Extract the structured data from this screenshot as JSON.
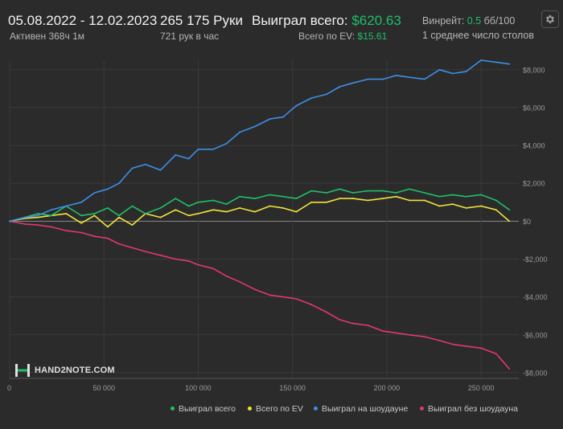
{
  "header": {
    "date_range": "05.08.2022 - 12.02.2023",
    "active": "Активен 368ч 1м",
    "hands": "265 175 Руки",
    "hands_per_hour": "721 рук в час",
    "won_label": "Выиграл всего: ",
    "won_value": "$620.63",
    "ev_label": "Всего по EV: ",
    "ev_value": "$15.61",
    "winrate_label": "Винрейт: ",
    "winrate_value": "0.5",
    "winrate_unit": " бб/100",
    "tables": "1 среднее число столов"
  },
  "settings_icon": "gear-icon",
  "logo": {
    "text": "HAND2NOTE.COM",
    "icon": "h2n-logo-icon"
  },
  "colors": {
    "background": "#2b2b2b",
    "won": "#1fbf6a",
    "ev": "#f0e43a",
    "showdown": "#3d8fe8",
    "non_showdown": "#e0396b"
  },
  "chart_data": {
    "type": "line",
    "x_ticks": [
      0,
      50000,
      100000,
      150000,
      200000,
      250000
    ],
    "x_tick_labels": [
      "0",
      "50 000",
      "100 000",
      "150 000",
      "200 000",
      "250 000"
    ],
    "y_ticks": [
      -8000,
      -6000,
      -4000,
      -2000,
      0,
      2000,
      4000,
      6000,
      8000
    ],
    "y_tick_labels": [
      "-$8,000",
      "-$6,000",
      "-$4,000",
      "-$2,000",
      "$0",
      "$2,000",
      "$4,000",
      "$6,000",
      "$8,000"
    ],
    "xlim": [
      0,
      270000
    ],
    "ylim": [
      -8300,
      8500
    ],
    "grid": true,
    "legend_position": "bottom-right",
    "x": [
      0,
      8000,
      15000,
      22000,
      30000,
      38000,
      45000,
      52000,
      58000,
      65000,
      72000,
      80000,
      88000,
      95000,
      100000,
      108000,
      115000,
      122000,
      130000,
      138000,
      145000,
      152000,
      160000,
      168000,
      175000,
      182000,
      190000,
      198000,
      205000,
      212000,
      220000,
      228000,
      235000,
      242000,
      250000,
      258000,
      265000
    ],
    "series": [
      {
        "name": "Выиграл всего",
        "color": "#1fbf6a",
        "values": [
          0,
          200,
          400,
          300,
          800,
          300,
          400,
          700,
          300,
          800,
          400,
          700,
          1200,
          800,
          1000,
          1100,
          900,
          1300,
          1200,
          1400,
          1300,
          1200,
          1600,
          1500,
          1700,
          1500,
          1600,
          1600,
          1500,
          1700,
          1500,
          1300,
          1400,
          1300,
          1400,
          1100,
          600
        ]
      },
      {
        "name": "Всего по EV",
        "color": "#f0e43a",
        "values": [
          0,
          150,
          200,
          300,
          400,
          -100,
          300,
          -300,
          200,
          -200,
          400,
          200,
          600,
          300,
          400,
          600,
          500,
          700,
          500,
          800,
          700,
          500,
          1000,
          1000,
          1200,
          1200,
          1100,
          1200,
          1300,
          1100,
          1100,
          800,
          900,
          700,
          800,
          600,
          0
        ]
      },
      {
        "name": "Выиграл на шоудауне",
        "color": "#3d8fe8",
        "values": [
          0,
          200,
          300,
          600,
          800,
          1000,
          1500,
          1700,
          2000,
          2800,
          3000,
          2700,
          3500,
          3300,
          3800,
          3800,
          4100,
          4700,
          5000,
          5400,
          5500,
          6100,
          6500,
          6700,
          7100,
          7300,
          7500,
          7500,
          7700,
          7600,
          7500,
          8000,
          7800,
          7900,
          8500,
          8400,
          8300
        ]
      },
      {
        "name": "Выиграл без шоудауна",
        "color": "#e0396b",
        "values": [
          0,
          -150,
          -200,
          -300,
          -500,
          -600,
          -800,
          -900,
          -1200,
          -1400,
          -1600,
          -1800,
          -2000,
          -2100,
          -2300,
          -2500,
          -2900,
          -3200,
          -3600,
          -3900,
          -4000,
          -4100,
          -4400,
          -4800,
          -5200,
          -5400,
          -5500,
          -5800,
          -5900,
          -6000,
          -6100,
          -6300,
          -6500,
          -6600,
          -6700,
          -7000,
          -7800
        ]
      }
    ]
  }
}
